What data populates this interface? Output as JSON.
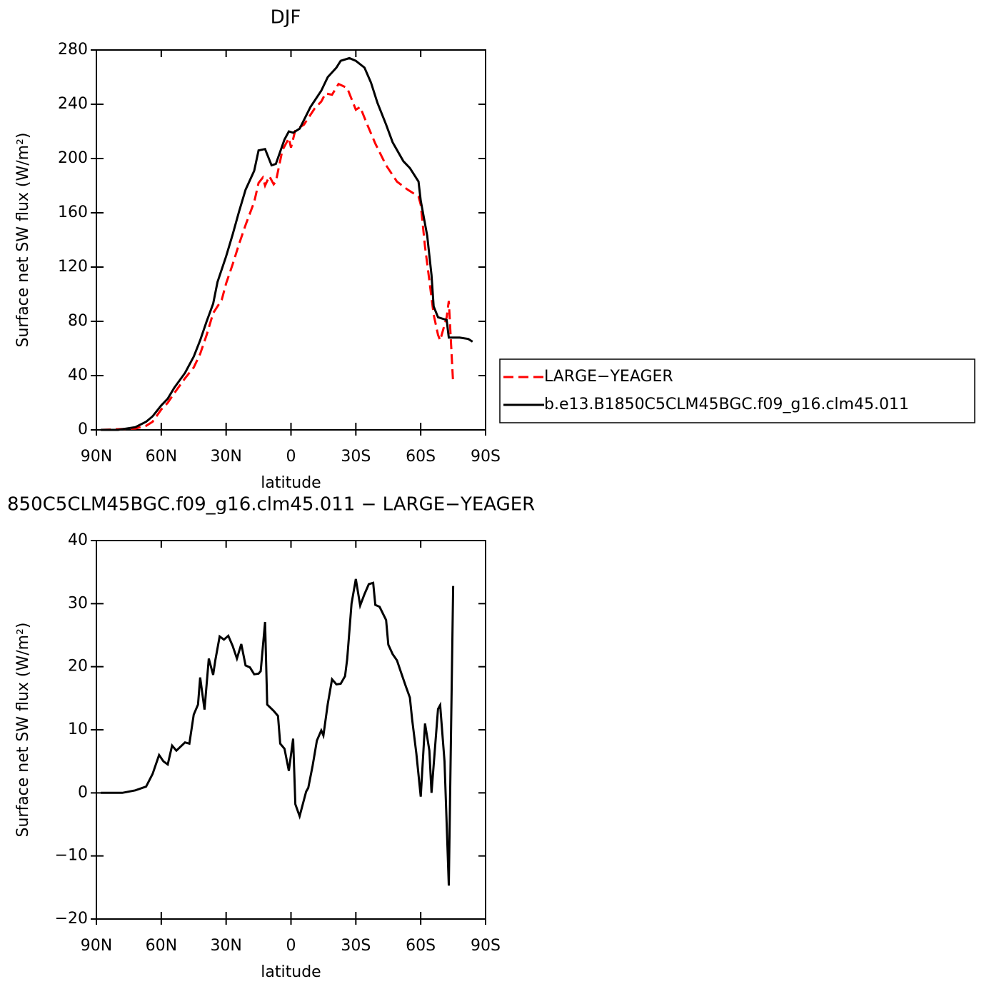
{
  "chart_data": [
    {
      "type": "line",
      "title": "DJF",
      "xlabel": "latitude",
      "ylabel": "Surface net SW flux (W/m²)",
      "xlim": [
        90,
        -90
      ],
      "xticks": [
        {
          "value": 90,
          "label": "90N"
        },
        {
          "value": 60,
          "label": "60N"
        },
        {
          "value": 30,
          "label": "30N"
        },
        0,
        {
          "value": -30,
          "label": "30S"
        },
        {
          "value": -60,
          "label": "60S"
        },
        {
          "value": -90,
          "label": "90S"
        }
      ],
      "ylim": [
        0,
        280
      ],
      "yticks": [
        0,
        40,
        80,
        120,
        160,
        200,
        240,
        280
      ],
      "legend": "right",
      "series": [
        {
          "name": "LARGE−YEAGER",
          "color": "#ff0000",
          "dashed": true,
          "x": [
            88,
            72,
            67,
            64,
            60,
            57,
            54,
            49,
            45,
            42,
            39,
            36,
            32,
            30,
            27,
            24,
            21,
            17,
            15,
            13,
            12,
            10,
            8,
            7,
            4,
            1,
            0,
            -2,
            -6,
            -11,
            -14,
            -16,
            -19,
            -22,
            -26,
            -30,
            -32,
            -35,
            -39,
            -44,
            -49,
            -54,
            -59,
            -60,
            -62,
            -64,
            -66,
            -68,
            -69,
            -72,
            -73,
            -75
          ],
          "values": [
            0,
            1,
            3,
            6,
            15,
            20,
            27,
            38,
            46,
            56,
            70,
            86,
            96,
            108,
            122,
            137,
            151,
            168,
            182,
            186,
            180,
            187,
            181,
            183,
            206,
            215,
            208,
            221,
            225,
            237,
            242,
            248,
            247,
            255,
            252,
            236,
            238,
            226,
            211,
            195,
            183,
            177,
            172,
            166,
            135,
            110,
            85,
            70,
            66,
            83,
            95,
            34
          ]
        },
        {
          "name": "b.e13.B1850C5CLM45BGC.f09_g16.clm45.011",
          "color": "#000000",
          "dashed": false,
          "x": [
            88,
            80,
            72,
            67,
            64,
            60,
            57,
            54,
            49,
            45,
            42,
            39,
            36,
            34,
            30,
            27,
            24,
            21,
            17,
            15,
            12,
            9,
            7,
            3,
            1,
            -1,
            -4,
            -9,
            -14,
            -17,
            -21,
            -23,
            -27,
            -30,
            -34,
            -37,
            -40,
            -44,
            -47,
            -52,
            -55,
            -59,
            -60,
            -63,
            -65,
            -66,
            -68,
            -72,
            -73,
            -78,
            -82,
            -84
          ],
          "values": [
            0,
            0,
            2,
            6,
            10,
            18,
            23,
            31,
            42,
            54,
            66,
            80,
            93,
            109,
            128,
            144,
            161,
            177,
            191,
            206,
            207,
            195,
            196,
            214,
            220,
            219,
            222,
            238,
            250,
            260,
            267,
            272,
            274,
            272,
            267,
            256,
            241,
            225,
            212,
            198,
            193,
            183,
            169,
            143,
            114,
            91,
            83,
            81,
            68,
            68,
            67,
            65
          ]
        }
      ]
    },
    {
      "type": "line",
      "title": "850C5CLM45BGC.f09_g16.clm45.011 − LARGE−YEAGER",
      "xlabel": "latitude",
      "ylabel": "Surface net SW flux (W/m²)",
      "xlim": [
        90,
        -90
      ],
      "xticks": [
        {
          "value": 90,
          "label": "90N"
        },
        {
          "value": 60,
          "label": "60N"
        },
        {
          "value": 30,
          "label": "30N"
        },
        0,
        {
          "value": -30,
          "label": "30S"
        },
        {
          "value": -60,
          "label": "60S"
        },
        {
          "value": -90,
          "label": "90S"
        }
      ],
      "ylim": [
        -20,
        40
      ],
      "yticks": [
        {
          "value": -20,
          "label": "−20"
        },
        {
          "value": -10,
          "label": "−10"
        },
        0,
        10,
        20,
        30,
        40
      ],
      "series": [
        {
          "color": "#000000",
          "dashed": false,
          "x": [
            88,
            78,
            72,
            67,
            64,
            61,
            59,
            57,
            55,
            53,
            49,
            47,
            45,
            43,
            42,
            40,
            38,
            36,
            35,
            33,
            31,
            29,
            27,
            25,
            23,
            21,
            19,
            17,
            15,
            14,
            12,
            11,
            8,
            6,
            5,
            3,
            1,
            -1,
            -2,
            -4,
            -7,
            -8,
            -10,
            -12,
            -14,
            -15,
            -17,
            -19,
            -21,
            -23,
            -25,
            -26,
            -28,
            -30,
            -32,
            -34,
            -36,
            -38,
            -39,
            -41,
            -44,
            -45,
            -47,
            -49,
            -51,
            -53,
            -55,
            -56,
            -58,
            -60,
            -62,
            -64,
            -65,
            -68,
            -69,
            -71,
            -73,
            -75
          ],
          "values": [
            0,
            0,
            0.4,
            1,
            3,
            6,
            5,
            4.5,
            7.5,
            6.7,
            8,
            7.8,
            12.4,
            14,
            18.3,
            13.2,
            21.3,
            18.7,
            21,
            24.8,
            24.3,
            24.9,
            23.3,
            21.3,
            23.6,
            20.2,
            19.9,
            18.8,
            18.9,
            19.3,
            27.1,
            14,
            13,
            12.2,
            7.8,
            7,
            3.5,
            8.6,
            -1.8,
            -3.7,
            0.2,
            0.8,
            4.3,
            8.3,
            9.9,
            9.1,
            14.1,
            18,
            17.2,
            17.3,
            18.5,
            21.2,
            30,
            33.9,
            29.7,
            31.5,
            33.1,
            33.3,
            29.8,
            29.5,
            27.4,
            23.5,
            22,
            21,
            19,
            17,
            15.1,
            11.7,
            6.2,
            -0.6,
            11,
            6.7,
            0,
            13.3,
            13.9,
            5,
            -14.7,
            32.8
          ]
        }
      ]
    }
  ]
}
